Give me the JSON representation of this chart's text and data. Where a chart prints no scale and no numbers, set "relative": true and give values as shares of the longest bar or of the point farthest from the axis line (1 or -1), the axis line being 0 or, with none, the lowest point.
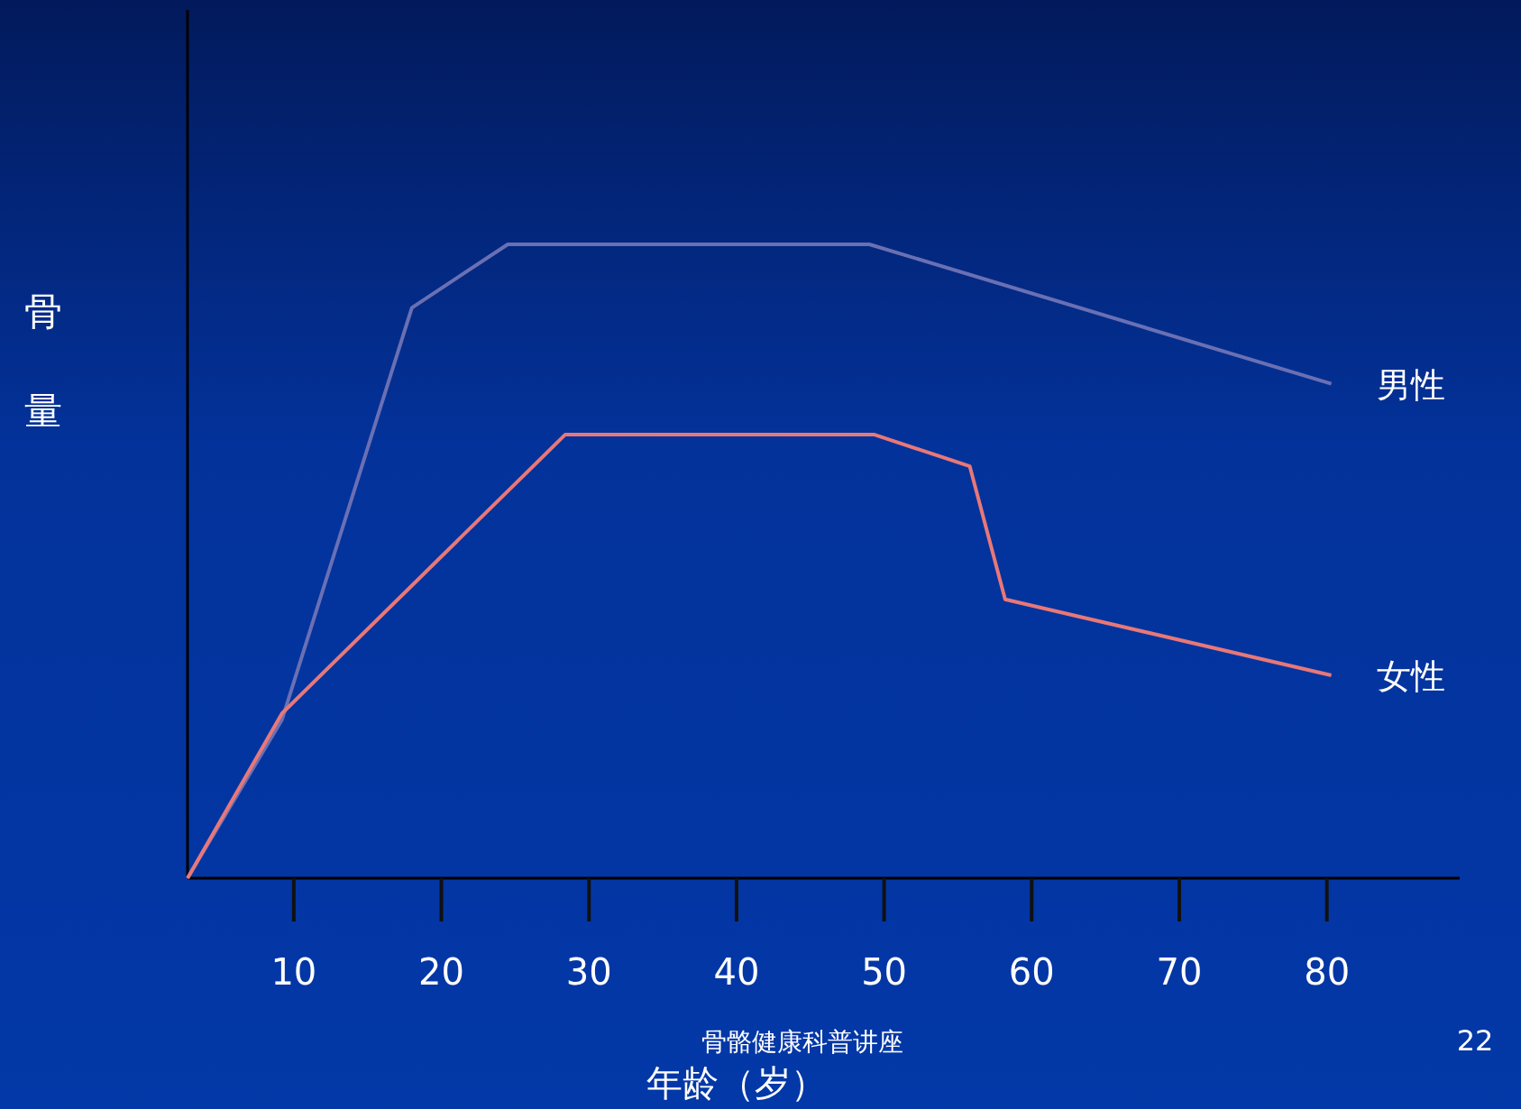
{
  "chart_data": {
    "type": "line",
    "relative": true,
    "ylabel": "骨量",
    "xlabel": "年龄（岁）",
    "xlim": [
      2.8,
      89
    ],
    "xticks": [
      10,
      20,
      30,
      40,
      50,
      60,
      70,
      80
    ],
    "series": [
      {
        "name": "男性",
        "color": "#6a70b4",
        "x": [
          2.8,
          9.2,
          18.0,
          24.5,
          49.0,
          80.3
        ],
        "values": [
          0,
          0.25,
          0.9,
          1,
          1,
          0.78
        ]
      },
      {
        "name": "女性",
        "color": "#e87878",
        "x": [
          2.8,
          9.2,
          28.4,
          49.3,
          55.8,
          58.2,
          80.3
        ],
        "values": [
          0,
          0.26,
          0.7,
          0.7,
          0.65,
          0.44,
          0.32
        ]
      }
    ],
    "marker": "none",
    "line_style": "solid",
    "annotations": [
      "骨骼健康科普讲座",
      "22"
    ]
  }
}
